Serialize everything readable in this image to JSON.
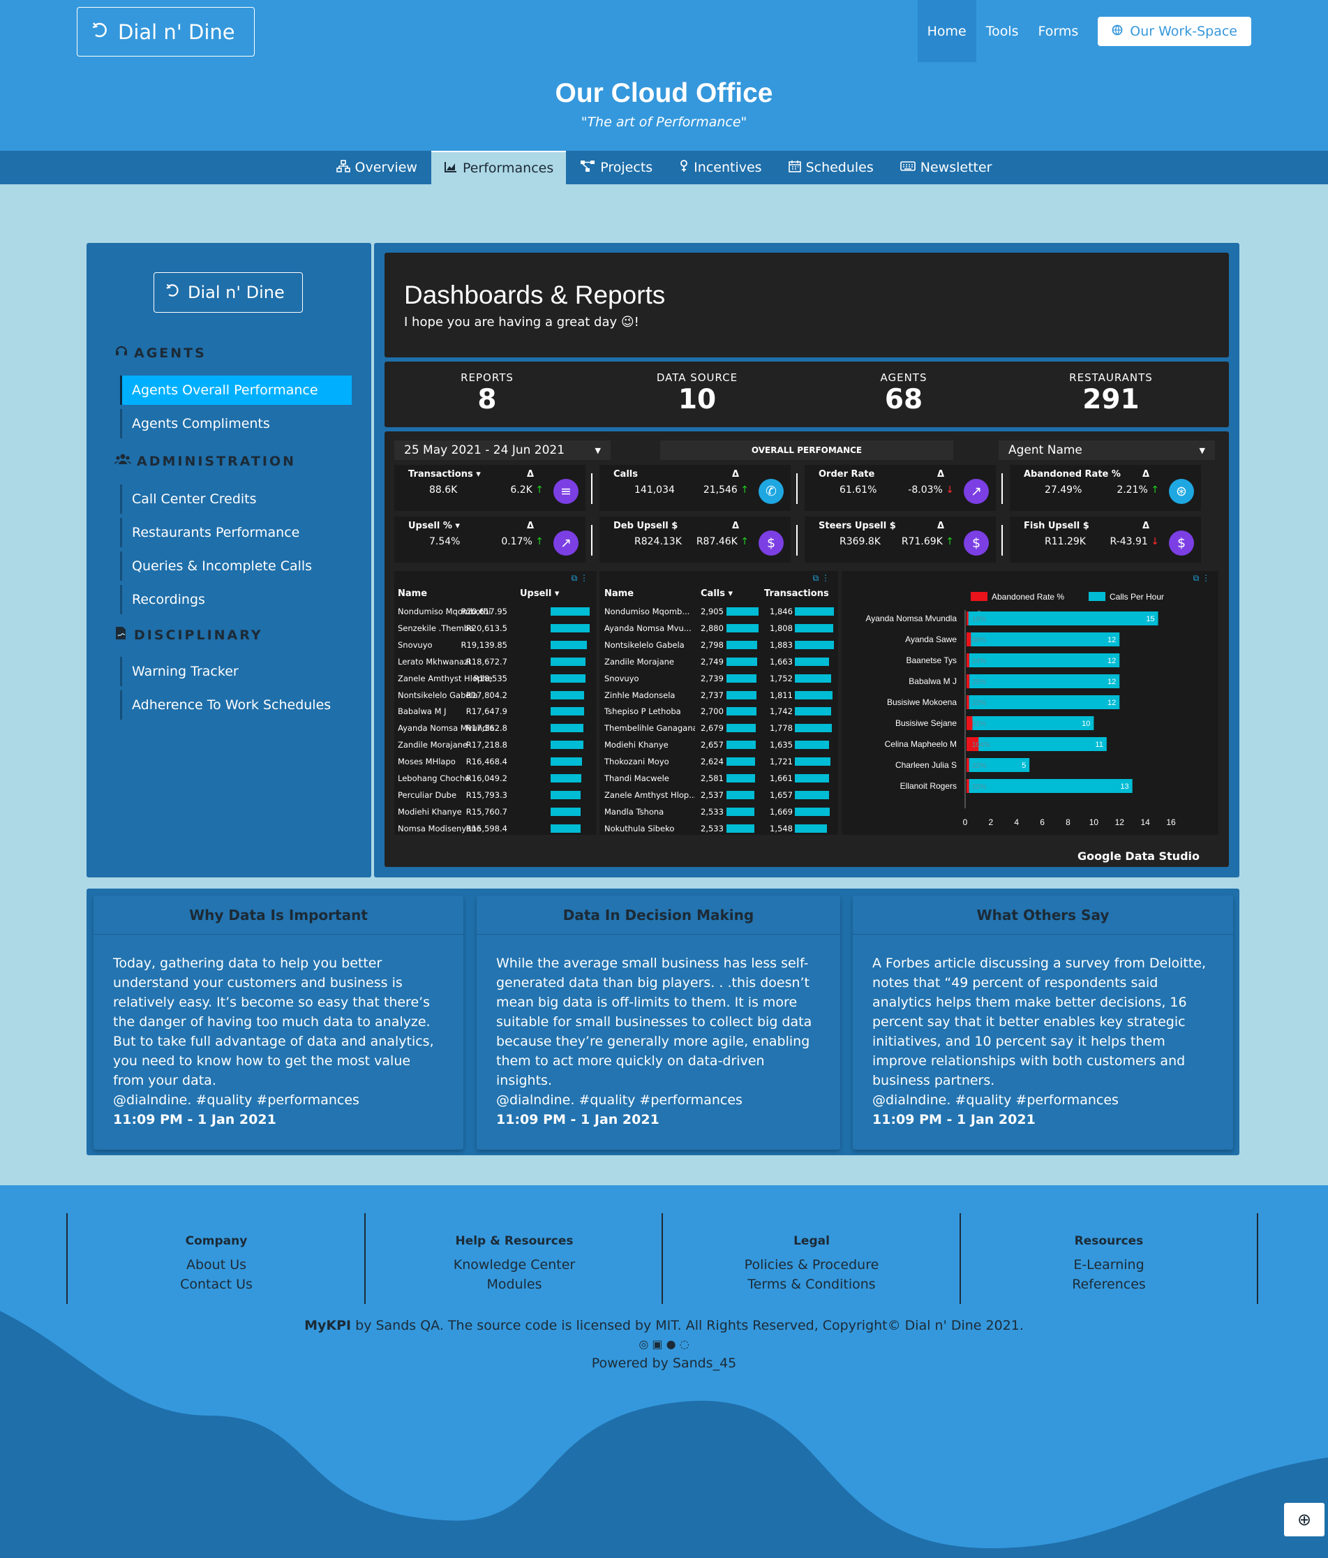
{
  "header": {
    "brand": "Dial n' Dine",
    "nav": [
      "Home",
      "Tools",
      "Forms"
    ],
    "workspace_button": "Our Work-Space",
    "title": "Our Cloud Office",
    "subtitle": "\"The art of Performance\""
  },
  "tabs": [
    "Overview",
    "Performances",
    "Projects",
    "Incentives",
    "Schedules",
    "Newsletter"
  ],
  "sidebar": {
    "brand": "Dial n' Dine",
    "sections": [
      {
        "heading": "AGENTS",
        "items": [
          "Agents Overall Performance",
          "Agents Compliments"
        ]
      },
      {
        "heading": "ADMINISTRATION",
        "items": [
          "Call Center Credits",
          "Restaurants Performance",
          "Queries & Incomplete Calls",
          "Recordings"
        ]
      },
      {
        "heading": "DISCIPLINARY",
        "items": [
          "Warning Tracker",
          "Adherence To Work Schedules"
        ]
      }
    ]
  },
  "dashboard": {
    "title": "Dashboards & Reports",
    "subtitle": "I hope you are having a great day 😉!",
    "kpis": [
      {
        "label": "REPORTS",
        "value": "8"
      },
      {
        "label": "DATA SOURCE",
        "value": "10"
      },
      {
        "label": "AGENTS",
        "value": "68"
      },
      {
        "label": "RESTAURANTS",
        "value": "291"
      }
    ]
  },
  "report": {
    "date_range": "25 May 2021 - 24 Jun 2021",
    "panel_title": "OVERALL PERFOMANCE",
    "agent_filter": "Agent Name",
    "delta_symbol": "Δ",
    "metrics": [
      {
        "name": "Transactions ▾",
        "value": "88.6K",
        "delta": "6.2K",
        "dir": "up",
        "icon": "list-icon",
        "color": "#7b3fe4"
      },
      {
        "name": "Calls",
        "value": "141,034",
        "delta": "21,546",
        "dir": "up",
        "icon": "phone-icon",
        "color": "#1ea7e1"
      },
      {
        "name": "Order Rate",
        "value": "61.61%",
        "delta": "-8.03%",
        "dir": "down",
        "icon": "trend-icon",
        "color": "#7b3fe4"
      },
      {
        "name": "Abandoned Rate %",
        "value": "27.49%",
        "delta": "2.21%",
        "dir": "up",
        "icon": "cart-icon",
        "color": "#1ea7e1"
      },
      {
        "name": "Upsell % ▾",
        "value": "7.54%",
        "delta": "0.17%",
        "dir": "up",
        "icon": "trend-icon",
        "color": "#7b3fe4"
      },
      {
        "name": "Deb Upsell $",
        "value": "R824.13K",
        "delta": "R87.46K",
        "dir": "up",
        "icon": "dollar-icon",
        "color": "#7b3fe4"
      },
      {
        "name": "Steers Upsell $",
        "value": "R369.8K",
        "delta": "R71.69K",
        "dir": "up",
        "icon": "dollar-icon",
        "color": "#7b3fe4"
      },
      {
        "name": "Fish Upsell $",
        "value": "R11.29K",
        "delta": "R-43.91",
        "dir": "down",
        "icon": "dollar-icon",
        "color": "#7b3fe4"
      }
    ],
    "upsell_table": {
      "headers": [
        "Name",
        "Upsell ▾"
      ],
      "rows": [
        {
          "name": "Nondumiso Mqombothi",
          "value": "R20,617.95",
          "frac": 1.0
        },
        {
          "name": "Senzekile .Themba",
          "value": "R20,613.5",
          "frac": 1.0
        },
        {
          "name": "Snovuyo",
          "value": "R19,139.85",
          "frac": 0.93
        },
        {
          "name": "Lerato Mkhwanazi",
          "value": "R18,672.7",
          "frac": 0.9
        },
        {
          "name": "Zanele Amthyst Hlophe",
          "value": "R18,535",
          "frac": 0.9
        },
        {
          "name": "Nontsikelelo Gabela",
          "value": "R17,804.2",
          "frac": 0.86
        },
        {
          "name": "Babalwa M J",
          "value": "R17,647.9",
          "frac": 0.86
        },
        {
          "name": "Ayanda Nomsa Mvundla",
          "value": "R17,362.8",
          "frac": 0.84
        },
        {
          "name": "Zandile Morajane",
          "value": "R17,218.8",
          "frac": 0.84
        },
        {
          "name": "Moses MHlapo",
          "value": "R16,468.4",
          "frac": 0.8
        },
        {
          "name": "Lebohang Chocho",
          "value": "R16,049.2",
          "frac": 0.78
        },
        {
          "name": "Perculiar Dube",
          "value": "R15,793.3",
          "frac": 0.77
        },
        {
          "name": "Modiehi Khanye",
          "value": "R15,760.7",
          "frac": 0.76
        },
        {
          "name": "Nomsa Modisenyane",
          "value": "R15,598.4",
          "frac": 0.76
        }
      ]
    },
    "calls_table": {
      "headers": [
        "Name",
        "Calls ▾",
        "Transactions"
      ],
      "rows": [
        {
          "name": "Nondumiso Mqomb...",
          "calls": "2,905",
          "tx": "1,846",
          "cf": 1.0,
          "tf": 1.0
        },
        {
          "name": "Ayanda Nomsa Mvu...",
          "calls": "2,880",
          "tx": "1,808",
          "cf": 0.99,
          "tf": 0.98
        },
        {
          "name": "Nontsikelelo Gabela",
          "calls": "2,798",
          "tx": "1,883",
          "cf": 0.96,
          "tf": 1.0
        },
        {
          "name": "Zandile Morajane",
          "calls": "2,749",
          "tx": "1,663",
          "cf": 0.95,
          "tf": 0.88
        },
        {
          "name": "Snovuyo",
          "calls": "2,739",
          "tx": "1,752",
          "cf": 0.94,
          "tf": 0.93
        },
        {
          "name": "Zinhle Madonsela",
          "calls": "2,737",
          "tx": "1,811",
          "cf": 0.94,
          "tf": 0.96
        },
        {
          "name": "Tshepiso P Lethoba",
          "calls": "2,700",
          "tx": "1,742",
          "cf": 0.93,
          "tf": 0.93
        },
        {
          "name": "Thembelihle Ganagana",
          "calls": "2,679",
          "tx": "1,778",
          "cf": 0.92,
          "tf": 0.94
        },
        {
          "name": "Modiehi Khanye",
          "calls": "2,657",
          "tx": "1,635",
          "cf": 0.91,
          "tf": 0.87
        },
        {
          "name": "Thokozani Moyo",
          "calls": "2,624",
          "tx": "1,721",
          "cf": 0.9,
          "tf": 0.91
        },
        {
          "name": "Thandi Macwele",
          "calls": "2,581",
          "tx": "1,661",
          "cf": 0.89,
          "tf": 0.88
        },
        {
          "name": "Zanele Amthyst Hlop...",
          "calls": "2,537",
          "tx": "1,657",
          "cf": 0.87,
          "tf": 0.88
        },
        {
          "name": "Mandla Tshona",
          "calls": "2,533",
          "tx": "1,669",
          "cf": 0.87,
          "tf": 0.89
        },
        {
          "name": "Nokuthula Sibeko",
          "calls": "2,533",
          "tx": "1,548",
          "cf": 0.87,
          "tf": 0.82
        }
      ]
    },
    "footer_brand": "Google Data Studio"
  },
  "chart_data": {
    "type": "bar",
    "orientation": "horizontal",
    "categories": [
      "Ayanda Nomsa Mvundla",
      "Ayanda Sawe",
      "Baanetse Tys",
      "Babalwa M J",
      "Busisiwe Mokoena",
      "Busisiwe Sejane",
      "Celina Mapheelo M",
      "Charleen Julia S",
      "Ellanoit Rogers"
    ],
    "series": [
      {
        "name": "Abandoned Rate %",
        "color": "#e8131b",
        "values": [
          0.16,
          0.38,
          0.24,
          0.25,
          0.22,
          0.51,
          1.04,
          0.22,
          0.22
        ],
        "labels": [
          "16%",
          "38%",
          "24%",
          "25%",
          "22%",
          "51%",
          "104%",
          "22%",
          "22%"
        ]
      },
      {
        "name": "Calls Per Hour",
        "color": "#00bcd4",
        "values": [
          15,
          12,
          12,
          12,
          12,
          10,
          11,
          5,
          13
        ]
      }
    ],
    "xlim": [
      0,
      16
    ],
    "xticks": [
      "0",
      "2",
      "4",
      "6",
      "8",
      "10",
      "12",
      "14",
      "16"
    ],
    "extra_tick": "0",
    "legend": "top"
  },
  "cards": [
    {
      "title": "Why Data Is Important",
      "body": "Today, gathering data to help you better understand your customers and business is relatively easy. It’s become so easy that there’s the danger of having too much data to analyze. But to take full advantage of data and analytics, you need to know how to get the most value from your data.",
      "tags": "@dialndine. #quality #performances",
      "time": "11:09 PM - 1 Jan 2021"
    },
    {
      "title": "Data In Decision Making",
      "body": "While the average small business has less self-generated data than big players. . .this doesn’t mean big data is off-limits to them. It is more suitable for small businesses to collect big data because they’re generally more agile, enabling them to act more quickly on data-driven insights.",
      "tags": "@dialndine. #quality #performances",
      "time": "11:09 PM - 1 Jan 2021"
    },
    {
      "title": "What Others Say",
      "body": "A Forbes article discussing a survey from Deloitte, notes that “49 percent of respondents said analytics helps them make better decisions, 16 percent say that it better enables key strategic initiatives, and 10 percent say it helps them improve relationships with both customers and business partners.",
      "tags": "@dialndine. #quality #performances",
      "time": "11:09 PM - 1 Jan 2021"
    }
  ],
  "footer": {
    "columns": [
      {
        "heading": "Company",
        "links": [
          "About Us",
          "Contact Us"
        ]
      },
      {
        "heading": "Help & Resources",
        "links": [
          "Knowledge Center",
          "Modules"
        ]
      },
      {
        "heading": "Legal",
        "links": [
          "Policies & Procedure",
          "Terms & Conditions"
        ]
      },
      {
        "heading": "Resources",
        "links": [
          "E-Learning",
          "References"
        ]
      }
    ],
    "brand_bold": "MyKPI",
    "copyright": " by Sands QA. The source code is licensed by MIT. All Rights Reserved, Copyright© Dial n' Dine 2021.",
    "powered": "Powered by Sands_45"
  },
  "colors": {
    "primary": "#3598dc",
    "dark": "#1f6faa",
    "bg": "#add8e6",
    "panel": "#222222",
    "cyan": "#00bcd4",
    "red": "#e8131b",
    "purple": "#7b3fe4"
  }
}
